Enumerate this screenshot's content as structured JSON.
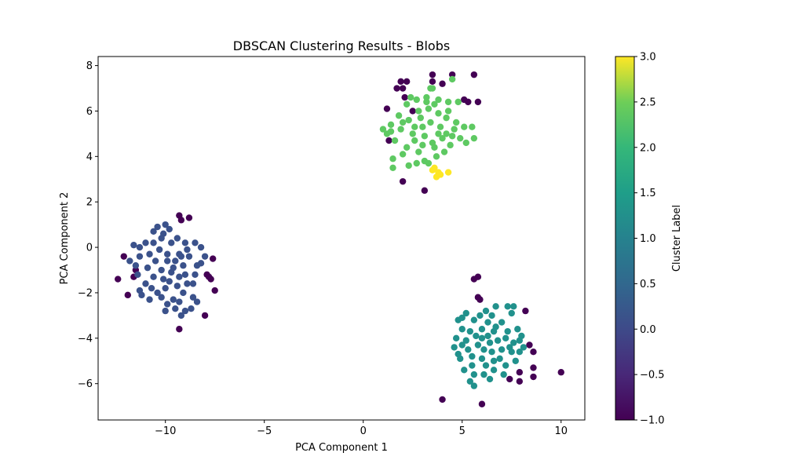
{
  "chart_data": {
    "type": "scatter",
    "title": "DBSCAN Clustering Results - Blobs",
    "xlabel": "PCA Component 1",
    "ylabel": "PCA Component 2",
    "xlim": [
      -13.4,
      11.2
    ],
    "ylim": [
      -7.6,
      8.4
    ],
    "xticks": [
      -10,
      -5,
      0,
      5,
      10
    ],
    "yticks": [
      -6,
      -4,
      -2,
      0,
      2,
      4,
      6,
      8
    ],
    "tick_labels": {
      "x": [
        "−10",
        "−5",
        "0",
        "5",
        "10"
      ],
      "y": [
        "−6",
        "−4",
        "−2",
        "0",
        "2",
        "4",
        "6",
        "8"
      ]
    },
    "grid": false,
    "colorbar": {
      "label": "Cluster Label",
      "colormap": "viridis",
      "range": [
        -1.0,
        3.0
      ],
      "ticks": [
        -1.0,
        -0.5,
        0.0,
        0.5,
        1.0,
        1.5,
        2.0,
        2.5,
        3.0
      ],
      "tick_labels": [
        "−1.0",
        "−0.5",
        "0.0",
        "0.5",
        "1.0",
        "1.5",
        "2.0",
        "2.5",
        "3.0"
      ]
    },
    "label_colors": {
      "-1": "#440154",
      "0": "#3b528b",
      "1": "#21918c",
      "2": "#5ec962",
      "3": "#fde725"
    },
    "series": [
      {
        "label": -1,
        "points": [
          [
            -12.4,
            -1.4
          ],
          [
            -12.1,
            -0.4
          ],
          [
            -11.9,
            -2.1
          ],
          [
            -11.5,
            -1.0
          ],
          [
            -11.6,
            -1.3
          ],
          [
            -9.3,
            1.4
          ],
          [
            -9.2,
            1.2
          ],
          [
            -8.8,
            1.3
          ],
          [
            -9.3,
            -3.6
          ],
          [
            -8.0,
            -3.0
          ],
          [
            -7.9,
            -1.2
          ],
          [
            -7.7,
            -1.4
          ],
          [
            -7.5,
            -1.9
          ],
          [
            -7.6,
            -0.5
          ],
          [
            -7.8,
            -1.3
          ],
          [
            1.2,
            6.1
          ],
          [
            1.3,
            4.7
          ],
          [
            2.0,
            7.0
          ],
          [
            1.7,
            7.0
          ],
          [
            2.2,
            7.3
          ],
          [
            1.9,
            7.3
          ],
          [
            3.5,
            7.6
          ],
          [
            4.0,
            7.2
          ],
          [
            4.5,
            7.6
          ],
          [
            5.1,
            6.5
          ],
          [
            5.3,
            6.4
          ],
          [
            5.8,
            6.4
          ],
          [
            5.6,
            7.6
          ],
          [
            3.5,
            7.3
          ],
          [
            2.5,
            6.0
          ],
          [
            2.1,
            6.6
          ],
          [
            2.0,
            2.9
          ],
          [
            3.1,
            2.5
          ],
          [
            5.6,
            -1.4
          ],
          [
            5.8,
            -1.3
          ],
          [
            5.8,
            -2.2
          ],
          [
            5.9,
            -2.3
          ],
          [
            4.0,
            -6.7
          ],
          [
            6.0,
            -6.9
          ],
          [
            8.2,
            -2.8
          ],
          [
            8.4,
            -4.3
          ],
          [
            8.6,
            -4.6
          ],
          [
            8.6,
            -5.3
          ],
          [
            8.6,
            -5.7
          ],
          [
            7.9,
            -5.9
          ],
          [
            7.9,
            -5.5
          ],
          [
            7.4,
            -5.8
          ],
          [
            10.0,
            -5.5
          ]
        ]
      },
      {
        "label": 0,
        "points": [
          [
            -10.0,
            1.0
          ],
          [
            -10.1,
            0.6
          ],
          [
            -10.6,
            0.7
          ],
          [
            -9.4,
            0.4
          ],
          [
            -9.0,
            0.2
          ],
          [
            -8.5,
            0.2
          ],
          [
            -8.2,
            0.0
          ],
          [
            -11.0,
            0.2
          ],
          [
            -11.3,
            0.0
          ],
          [
            -11.6,
            0.1
          ],
          [
            -11.8,
            -0.6
          ],
          [
            -11.3,
            -0.4
          ],
          [
            -10.8,
            -0.3
          ],
          [
            -10.3,
            -0.1
          ],
          [
            -9.9,
            -0.3
          ],
          [
            -9.5,
            -0.6
          ],
          [
            -9.1,
            -0.8
          ],
          [
            -8.8,
            -0.4
          ],
          [
            -8.4,
            -0.8
          ],
          [
            -8.5,
            -1.2
          ],
          [
            -8.9,
            -1.6
          ],
          [
            -9.3,
            -1.3
          ],
          [
            -9.7,
            -1.1
          ],
          [
            -10.2,
            -1.0
          ],
          [
            -10.6,
            -1.3
          ],
          [
            -11.0,
            -1.6
          ],
          [
            -11.3,
            -1.9
          ],
          [
            -11.2,
            -2.1
          ],
          [
            -10.7,
            -1.8
          ],
          [
            -10.2,
            -2.2
          ],
          [
            -9.9,
            -2.5
          ],
          [
            -9.6,
            -2.3
          ],
          [
            -9.1,
            -2.0
          ],
          [
            -8.6,
            -2.2
          ],
          [
            -8.4,
            -2.4
          ],
          [
            -9.0,
            -2.8
          ],
          [
            -9.5,
            -2.7
          ],
          [
            -10.0,
            -2.8
          ],
          [
            -10.4,
            -2.0
          ],
          [
            -9.8,
            -1.5
          ],
          [
            -9.4,
            -1.7
          ],
          [
            -9.0,
            -1.2
          ],
          [
            -10.5,
            -0.6
          ],
          [
            -10.9,
            -0.9
          ],
          [
            -11.4,
            -1.2
          ],
          [
            -9.7,
            0.2
          ],
          [
            -10.2,
            0.4
          ],
          [
            -8.9,
            -0.1
          ],
          [
            -9.3,
            -0.3
          ],
          [
            -10.6,
            0.2
          ],
          [
            -8.2,
            -0.7
          ],
          [
            -9.6,
            -0.9
          ],
          [
            -10.0,
            -1.8
          ],
          [
            -8.7,
            -2.7
          ],
          [
            -9.2,
            -3.0
          ],
          [
            -10.8,
            -2.3
          ],
          [
            -11.5,
            -0.8
          ],
          [
            -8.0,
            -0.4
          ],
          [
            -9.8,
            0.8
          ],
          [
            -10.4,
            0.9
          ],
          [
            -9.2,
            -0.4
          ],
          [
            -9.9,
            -0.6
          ],
          [
            -10.1,
            -1.4
          ],
          [
            -9.3,
            -2.4
          ],
          [
            -8.6,
            -1.6
          ]
        ]
      },
      {
        "label": 1,
        "points": [
          [
            6.2,
            -2.8
          ],
          [
            6.7,
            -2.6
          ],
          [
            7.3,
            -2.6
          ],
          [
            7.6,
            -2.6
          ],
          [
            7.5,
            -2.9
          ],
          [
            5.2,
            -2.9
          ],
          [
            4.8,
            -3.2
          ],
          [
            5.0,
            -3.1
          ],
          [
            5.6,
            -3.2
          ],
          [
            6.3,
            -3.3
          ],
          [
            7.0,
            -3.3
          ],
          [
            7.8,
            -3.6
          ],
          [
            8.0,
            -3.9
          ],
          [
            7.6,
            -4.2
          ],
          [
            7.2,
            -4.0
          ],
          [
            6.6,
            -3.7
          ],
          [
            6.0,
            -3.6
          ],
          [
            5.4,
            -3.7
          ],
          [
            5.0,
            -3.6
          ],
          [
            4.7,
            -4.0
          ],
          [
            4.6,
            -4.4
          ],
          [
            4.8,
            -4.7
          ],
          [
            5.3,
            -4.5
          ],
          [
            5.8,
            -4.3
          ],
          [
            6.4,
            -4.2
          ],
          [
            7.0,
            -4.5
          ],
          [
            7.5,
            -4.6
          ],
          [
            7.9,
            -4.6
          ],
          [
            8.1,
            -4.4
          ],
          [
            7.7,
            -5.0
          ],
          [
            7.2,
            -5.2
          ],
          [
            6.6,
            -5.0
          ],
          [
            6.0,
            -4.9
          ],
          [
            5.5,
            -5.2
          ],
          [
            5.1,
            -5.4
          ],
          [
            5.6,
            -5.6
          ],
          [
            6.1,
            -5.6
          ],
          [
            6.6,
            -5.4
          ],
          [
            5.4,
            -5.9
          ],
          [
            5.6,
            -6.1
          ],
          [
            6.0,
            -4.0
          ],
          [
            6.5,
            -4.6
          ],
          [
            6.9,
            -4.9
          ],
          [
            5.7,
            -3.9
          ],
          [
            6.3,
            -3.9
          ],
          [
            6.8,
            -4.1
          ],
          [
            7.4,
            -4.4
          ],
          [
            5.2,
            -4.1
          ],
          [
            4.9,
            -4.9
          ],
          [
            6.2,
            -5.2
          ],
          [
            7.3,
            -3.7
          ],
          [
            6.5,
            -3.0
          ],
          [
            5.9,
            -3.0
          ],
          [
            7.1,
            -5.6
          ],
          [
            6.4,
            -5.8
          ],
          [
            5.0,
            -4.3
          ],
          [
            7.9,
            -4.1
          ],
          [
            6.1,
            -4.5
          ],
          [
            6.7,
            -3.5
          ],
          [
            5.5,
            -4.8
          ]
        ]
      },
      {
        "label": 2,
        "points": [
          [
            3.5,
            7.0
          ],
          [
            4.5,
            7.4
          ],
          [
            2.7,
            6.5
          ],
          [
            3.2,
            6.6
          ],
          [
            3.8,
            6.5
          ],
          [
            4.3,
            6.4
          ],
          [
            4.8,
            6.4
          ],
          [
            2.2,
            6.3
          ],
          [
            1.8,
            5.8
          ],
          [
            1.4,
            5.4
          ],
          [
            1.0,
            5.2
          ],
          [
            1.4,
            5.1
          ],
          [
            1.9,
            5.2
          ],
          [
            2.3,
            5.6
          ],
          [
            2.8,
            6.0
          ],
          [
            3.3,
            6.1
          ],
          [
            3.8,
            5.9
          ],
          [
            4.2,
            5.7
          ],
          [
            4.7,
            5.5
          ],
          [
            5.1,
            5.3
          ],
          [
            5.5,
            5.3
          ],
          [
            5.6,
            4.8
          ],
          [
            5.2,
            4.6
          ],
          [
            4.9,
            4.8
          ],
          [
            4.5,
            4.9
          ],
          [
            4.0,
            4.8
          ],
          [
            3.5,
            4.6
          ],
          [
            3.0,
            4.5
          ],
          [
            2.6,
            4.7
          ],
          [
            2.2,
            4.4
          ],
          [
            2.0,
            4.1
          ],
          [
            1.5,
            3.9
          ],
          [
            1.5,
            3.5
          ],
          [
            2.3,
            3.6
          ],
          [
            2.7,
            3.7
          ],
          [
            3.1,
            3.8
          ],
          [
            3.3,
            3.7
          ],
          [
            3.7,
            4.0
          ],
          [
            4.1,
            4.2
          ],
          [
            4.4,
            4.5
          ],
          [
            3.0,
            5.3
          ],
          [
            3.4,
            5.5
          ],
          [
            3.9,
            5.3
          ],
          [
            2.5,
            5.0
          ],
          [
            2.0,
            5.5
          ],
          [
            4.3,
            6.0
          ],
          [
            3.6,
            6.3
          ],
          [
            2.9,
            5.7
          ],
          [
            3.1,
            4.9
          ],
          [
            3.8,
            5.0
          ],
          [
            4.6,
            5.2
          ],
          [
            2.4,
            6.6
          ],
          [
            1.6,
            4.7
          ],
          [
            1.2,
            5.0
          ],
          [
            3.4,
            7.0
          ],
          [
            2.8,
            4.2
          ],
          [
            4.2,
            5.0
          ],
          [
            3.6,
            4.4
          ],
          [
            2.6,
            5.3
          ],
          [
            3.2,
            6.4
          ]
        ]
      },
      {
        "label": 3,
        "points": [
          [
            3.6,
            3.5
          ],
          [
            3.8,
            3.3
          ],
          [
            3.7,
            3.1
          ],
          [
            3.9,
            3.2
          ],
          [
            4.3,
            3.3
          ],
          [
            3.5,
            3.4
          ]
        ]
      }
    ]
  }
}
